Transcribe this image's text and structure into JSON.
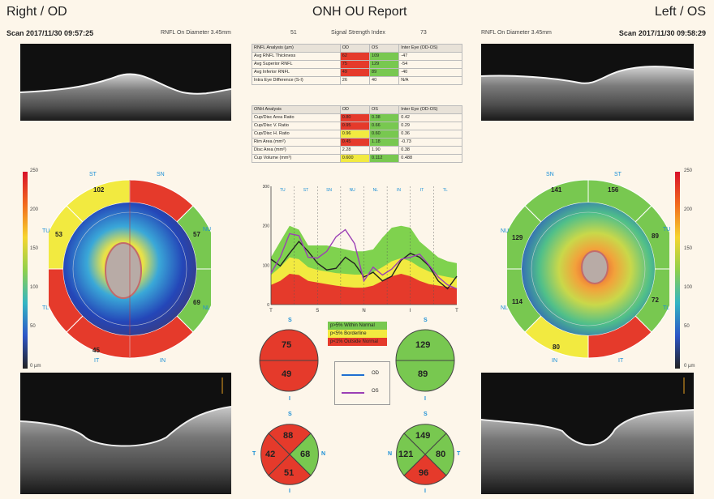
{
  "header": {
    "left_title": "Right / OD",
    "center_title": "ONH OU Report",
    "right_title": "Left / OS"
  },
  "scan_right": {
    "label": "Scan 2017/11/30 09:57:25",
    "diameter": "RNFL On Diameter 3.45mm",
    "ssi_value": "51",
    "ssi_label": "Signal Strength Index",
    "ssi_value_os": "73"
  },
  "scan_left": {
    "label": "Scan 2017/11/30 09:58:29",
    "diameter": "RNFL On Diameter 3.45mm"
  },
  "rnfl_table": {
    "headers": [
      "RNFL Analysis (µm)",
      "OD",
      "OS",
      "Inter Eye (OD-OS)"
    ],
    "rows": [
      {
        "label": "Avg RNFL Thickness",
        "od": "62",
        "os": "109",
        "diff": "-47",
        "od_status": "red",
        "os_status": "green"
      },
      {
        "label": "Avg Superior RNFL",
        "od": "75",
        "os": "129",
        "diff": "-54",
        "od_status": "red",
        "os_status": "green"
      },
      {
        "label": "Avg Inferior RNFL",
        "od": "49",
        "os": "89",
        "diff": "-40",
        "od_status": "red",
        "os_status": "green"
      },
      {
        "label": "Intra Eye Difference (S-I)",
        "od": "26",
        "os": "40",
        "diff": "N/A",
        "od_status": "none",
        "os_status": "none"
      }
    ]
  },
  "onh_table": {
    "headers": [
      "ONH Analysis",
      "OD",
      "OS",
      "Inter Eye (OD-OS)"
    ],
    "rows": [
      {
        "label": "Cup/Disc Area Ratio",
        "od": "0.80",
        "os": "0.38",
        "diff": "0.42",
        "od_status": "red",
        "os_status": "green"
      },
      {
        "label": "Cup/Disc V. Ratio",
        "od": "0.95",
        "os": "0.66",
        "diff": "0.29",
        "od_status": "red",
        "os_status": "green"
      },
      {
        "label": "Cup/Disc H. Ratio",
        "od": "0.96",
        "os": "0.60",
        "diff": "0.36",
        "od_status": "yellow",
        "os_status": "green"
      },
      {
        "label": "Rim Area (mm²)",
        "od": "0.45",
        "os": "1.18",
        "diff": "-0.73",
        "od_status": "red",
        "os_status": "green"
      },
      {
        "label": "Disc Area (mm²)",
        "od": "2.28",
        "os": "1.90",
        "diff": "0.38",
        "od_status": "none",
        "os_status": "none"
      },
      {
        "label": "Cup Volume (mm³)",
        "od": "0.600",
        "os": "0.112",
        "diff": "0.488",
        "od_status": "yellow",
        "os_status": "green"
      }
    ]
  },
  "tsnit_chart": {
    "y_ticks": [
      "300",
      "200",
      "100",
      "0"
    ],
    "x_ticks": [
      "T",
      "S",
      "N",
      "I",
      "T"
    ],
    "sector_labels": [
      "TU",
      "ST",
      "SN",
      "NU",
      "NL",
      "IN",
      "IT",
      "TL"
    ],
    "od_curve": [
      115,
      98,
      130,
      160,
      135,
      105,
      88,
      92,
      120,
      104,
      70,
      82,
      60,
      72,
      112,
      130,
      120,
      98,
      60,
      40,
      72
    ],
    "os_curve": [
      80,
      120,
      180,
      175,
      120,
      118,
      135,
      172,
      190,
      155,
      60,
      95,
      75,
      90,
      115,
      120,
      128,
      100,
      70,
      50,
      40
    ],
    "normal_green": [
      120,
      160,
      200,
      190,
      150,
      150,
      150,
      145,
      140,
      135,
      135,
      140,
      170,
      195,
      200,
      195,
      160,
      140,
      120,
      110,
      105
    ],
    "normal_yellow": [
      75,
      95,
      120,
      115,
      95,
      88,
      84,
      80,
      78,
      76,
      76,
      82,
      95,
      110,
      118,
      110,
      95,
      84,
      75,
      70,
      66
    ],
    "normal_red": [
      50,
      60,
      78,
      75,
      60,
      56,
      52,
      48,
      45,
      43,
      43,
      48,
      60,
      72,
      78,
      72,
      60,
      52,
      48,
      45,
      42
    ]
  },
  "legend": {
    "within_normal": "p>5% Within Normal",
    "borderline": "p<5% Borderline",
    "outside_normal": "p<1% Outside Normal",
    "od_label": "OD",
    "os_label": "OS",
    "od_color": "#1f6fd1",
    "os_color": "#9b3fb5"
  },
  "circles": {
    "od_si": {
      "s": "75",
      "i": "49",
      "top": "S",
      "bottom": "I"
    },
    "os_si": {
      "s": "129",
      "i": "89",
      "top": "S",
      "bottom": "I"
    },
    "od_quad": {
      "s": "88",
      "t": "42",
      "n": "68",
      "i": "51",
      "top": "S",
      "left": "T",
      "right": "N",
      "bottom": "I"
    },
    "os_quad": {
      "s": "149",
      "n": "121",
      "t": "80",
      "i": "96",
      "top": "S",
      "left": "N",
      "right": "T",
      "bottom": "I"
    }
  },
  "od_map": {
    "sectors": {
      "ST": "102",
      "SN": "",
      "NU": "57",
      "NL": "69",
      "IN": "",
      "IT": "45",
      "TL": "",
      "TU": "53"
    },
    "labels": [
      "ST",
      "SN",
      "NU",
      "NL",
      "IN",
      "IT",
      "TL",
      "TU"
    ]
  },
  "os_map": {
    "sectors": {
      "SN": "141",
      "ST": "156",
      "TU": "89",
      "TL": "72",
      "IT": "",
      "IN": "80",
      "NL": "114",
      "NU": "129"
    },
    "labels": [
      "SN",
      "ST",
      "TU",
      "TL",
      "IT",
      "IN",
      "NL",
      "NU"
    ]
  },
  "colorbar": {
    "ticks": [
      "250",
      "200",
      "150",
      "100",
      "50",
      "0 µm"
    ]
  }
}
